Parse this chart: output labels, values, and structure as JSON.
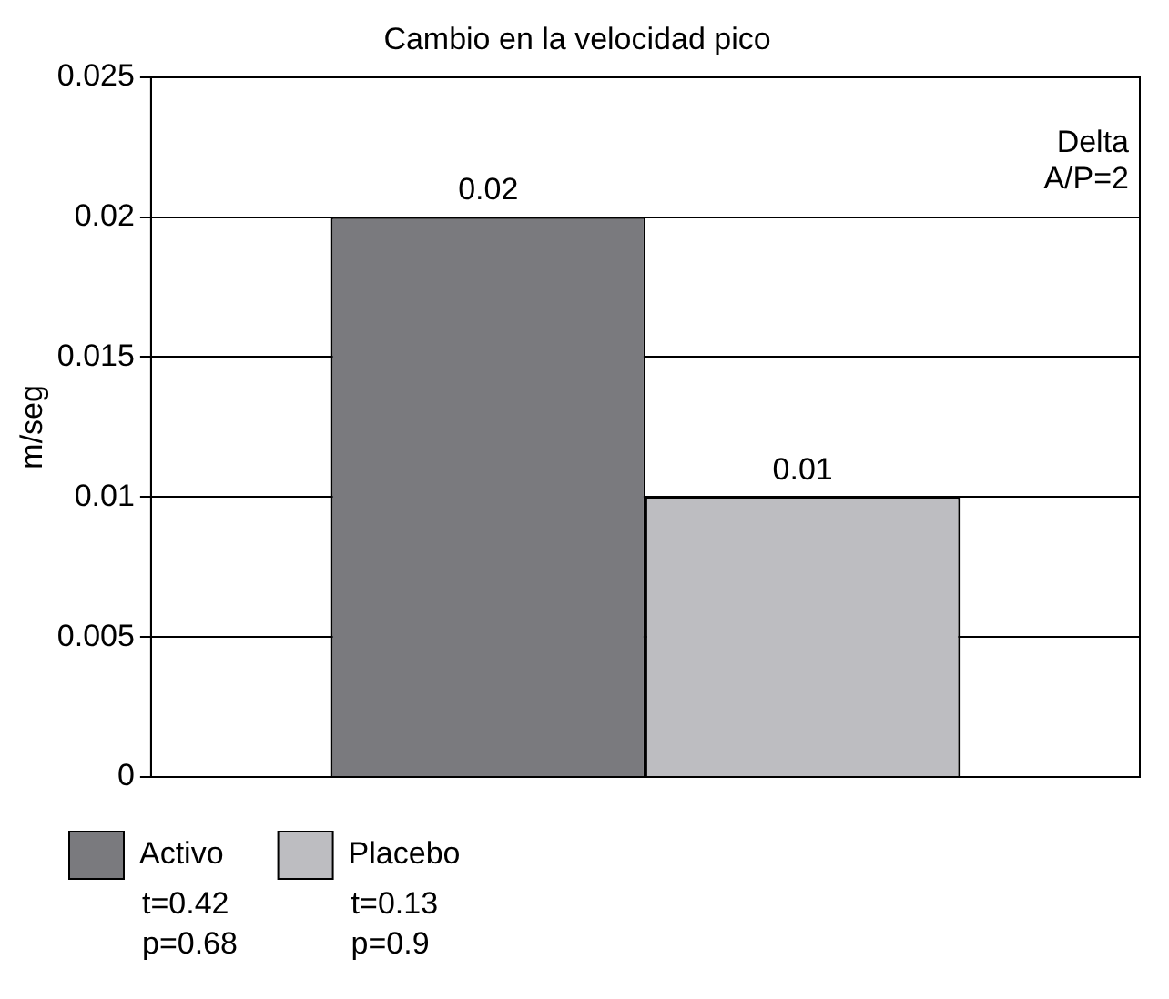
{
  "chart_data": {
    "type": "bar",
    "title": "Cambio en la velocidad pico",
    "ylabel": "m/seg",
    "categories": [
      null
    ],
    "series": [
      {
        "name": "Activo",
        "color": "#7a7a7e",
        "values": [
          0.02
        ]
      },
      {
        "name": "Placebo",
        "color": "#bdbdc1",
        "values": [
          0.01
        ]
      }
    ],
    "ylim": [
      0,
      0.025
    ],
    "yticks": [
      0,
      0.005,
      0.01,
      0.015,
      0.02,
      0.025
    ],
    "grid": "y",
    "legend": "bottom",
    "tick_labels": "y",
    "data_labels": true,
    "annotations": [
      "Delta\nA/P=2",
      "t=0.42\np=0.68",
      "t=0.13\np=0.9"
    ]
  }
}
